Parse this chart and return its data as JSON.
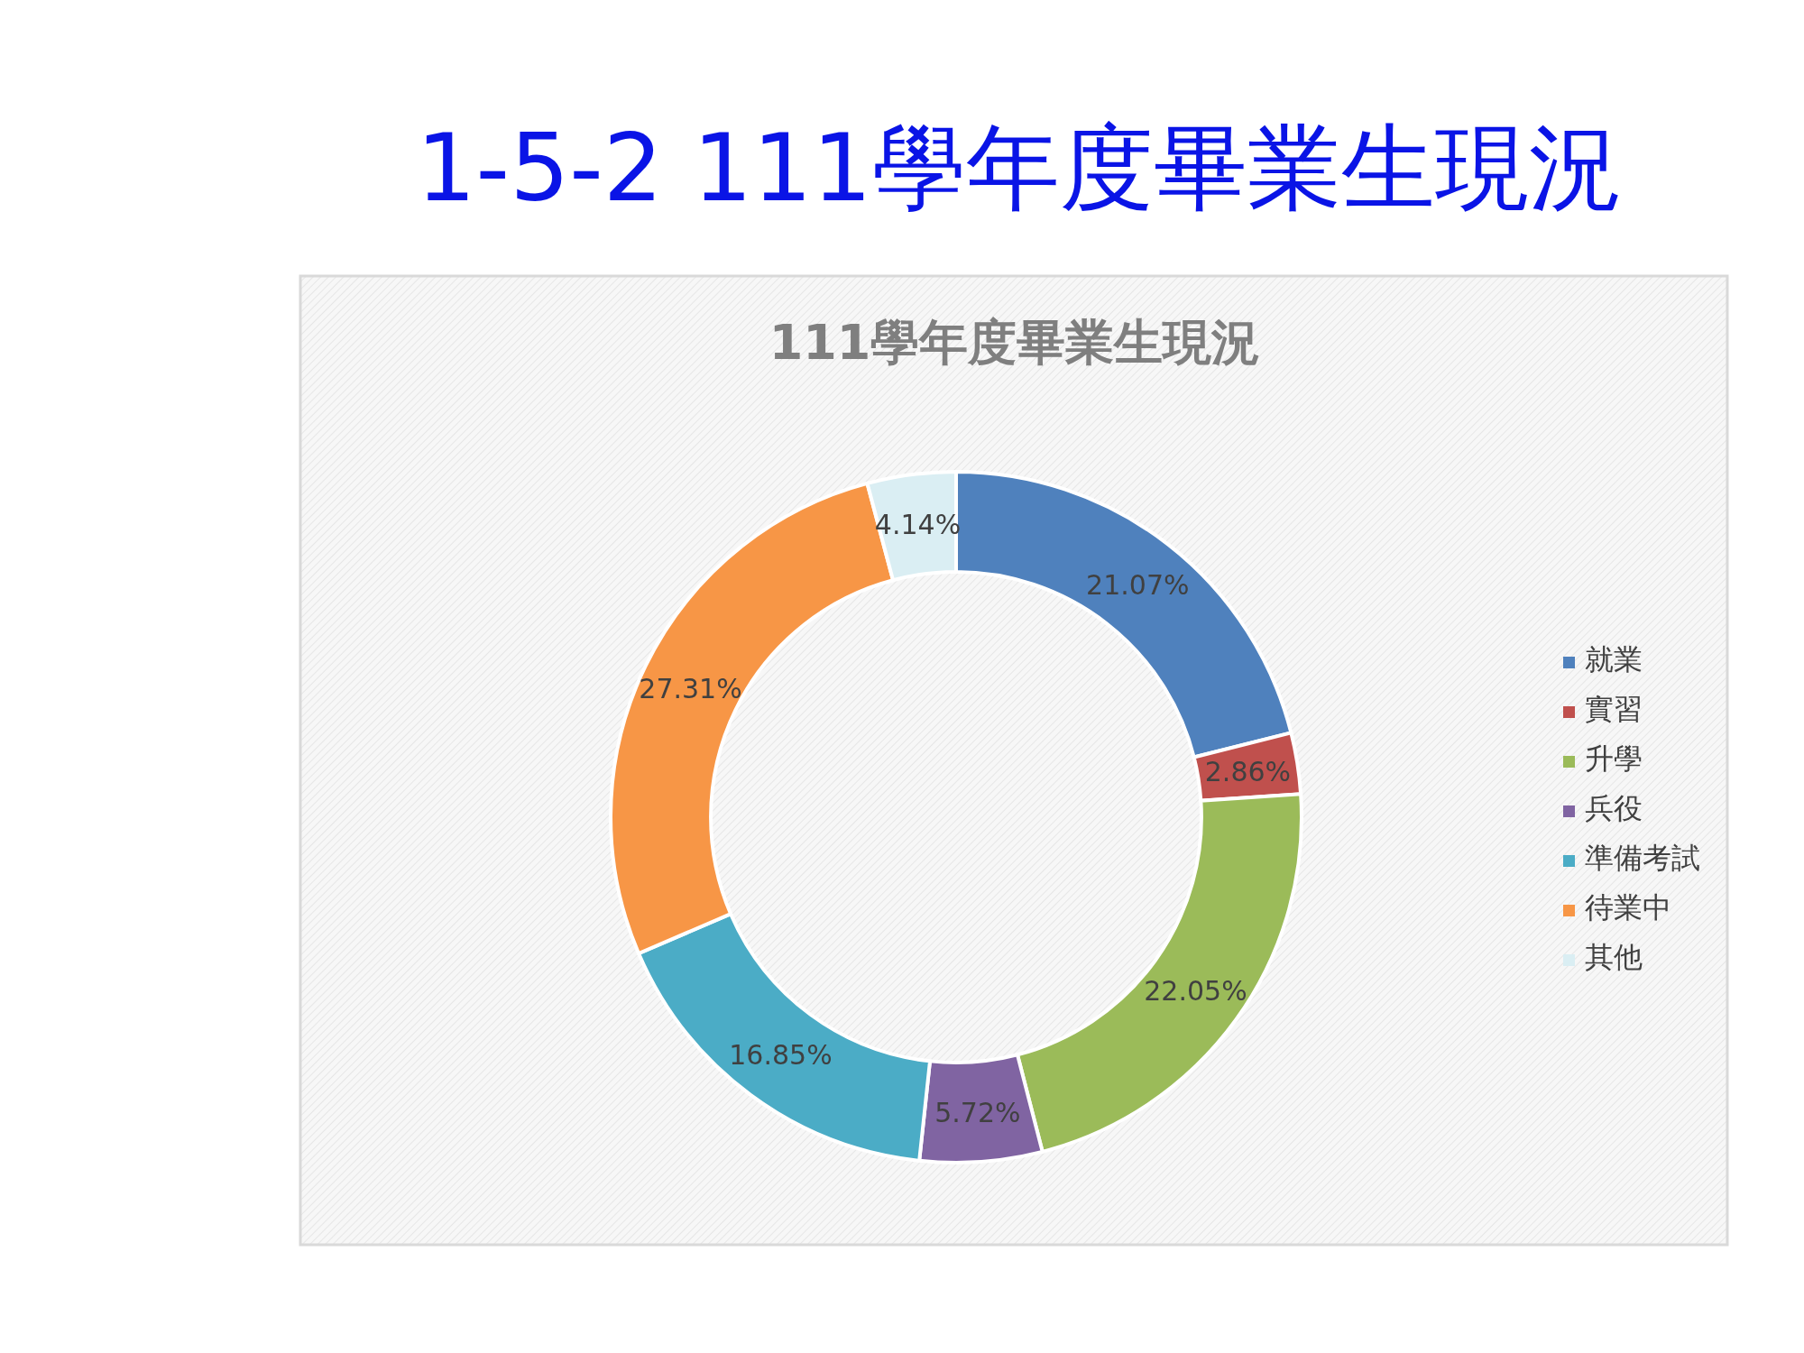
{
  "chart_data": {
    "type": "donut",
    "title": "1-5-2  111學年度畢業生現況",
    "subtitle": "111學年度畢業生現況",
    "categories": [
      "就業",
      "實習",
      "升學",
      "兵役",
      "準備考試",
      "待業中",
      "其他"
    ],
    "values": [
      21.07,
      2.86,
      22.05,
      5.72,
      16.85,
      27.31,
      4.14
    ],
    "colors": [
      "#4f81bd",
      "#c0504d",
      "#9bbb59",
      "#8064a2",
      "#4bacc6",
      "#f79646",
      "#daeef3"
    ],
    "value_labels": [
      "21.07%",
      "2.86%",
      "22.05%",
      "5.72%",
      "16.85%",
      "27.31%",
      "4.14%"
    ],
    "legend": "right"
  }
}
